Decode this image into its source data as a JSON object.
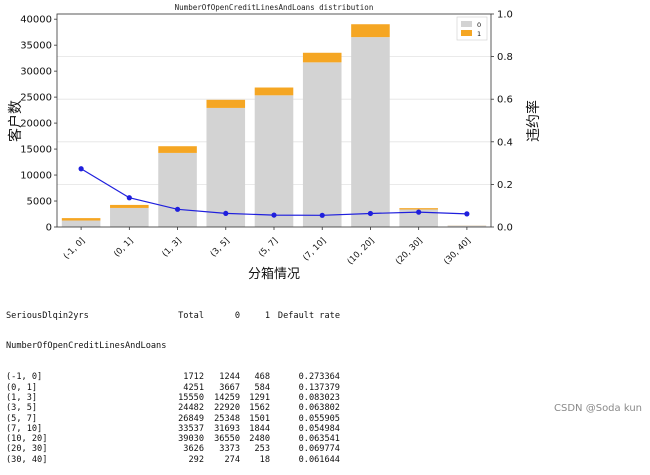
{
  "chart_data": {
    "type": "bar",
    "title": "NumberOfOpenCreditLinesAndLoans distribution",
    "xlabel": "分箱情况",
    "ylabel": "客户数",
    "y2label": "违约率",
    "categories": [
      "(-1, 0]",
      "(0, 1]",
      "(1, 3]",
      "(3, 5]",
      "(5, 7]",
      "(7, 10]",
      "(10, 20]",
      "(20, 30]",
      "(30, 40]"
    ],
    "series": [
      {
        "name": "0",
        "values": [
          1244,
          3667,
          14259,
          22920,
          25348,
          31693,
          36550,
          3373,
          274
        ],
        "color": "#d3d3d3"
      },
      {
        "name": "1",
        "values": [
          468,
          584,
          1291,
          1562,
          1501,
          1844,
          2480,
          253,
          18
        ],
        "color": "#f5a623"
      }
    ],
    "line_series": {
      "name": "Default rate",
      "values": [
        0.273364,
        0.137379,
        0.083023,
        0.063802,
        0.055905,
        0.054984,
        0.063541,
        0.069774,
        0.061644
      ],
      "color": "#1f1fdd"
    },
    "ylim": [
      0,
      41000
    ],
    "yticks": [
      0,
      5000,
      10000,
      15000,
      20000,
      25000,
      30000,
      35000,
      40000
    ],
    "y2lim": [
      0,
      1.0
    ],
    "y2ticks": [
      "0.0",
      "0.2",
      "0.4",
      "0.6",
      "0.8",
      "1.0"
    ],
    "legend_position": "top-right",
    "grid": "horizontal"
  },
  "table": {
    "header": {
      "label": "SeriousDlqin2yrs",
      "total": "Total",
      "zero": "0",
      "one": "1",
      "rate": "Default rate"
    },
    "index_name": "NumberOfOpenCreditLinesAndLoans",
    "rows": [
      {
        "label": "(-1, 0]",
        "total": "1712",
        "zero": "1244",
        "one": "468",
        "rate": "0.273364"
      },
      {
        "label": "(0, 1]",
        "total": "4251",
        "zero": "3667",
        "one": "584",
        "rate": "0.137379"
      },
      {
        "label": "(1, 3]",
        "total": "15550",
        "zero": "14259",
        "one": "1291",
        "rate": "0.083023"
      },
      {
        "label": "(3, 5]",
        "total": "24482",
        "zero": "22920",
        "one": "1562",
        "rate": "0.063802"
      },
      {
        "label": "(5, 7]",
        "total": "26849",
        "zero": "25348",
        "one": "1501",
        "rate": "0.055905"
      },
      {
        "label": "(7, 10]",
        "total": "33537",
        "zero": "31693",
        "one": "1844",
        "rate": "0.054984"
      },
      {
        "label": "(10, 20]",
        "total": "39030",
        "zero": "36550",
        "one": "2480",
        "rate": "0.063541"
      },
      {
        "label": "(20, 30]",
        "total": "3626",
        "zero": "3373",
        "one": "253",
        "rate": "0.069774"
      },
      {
        "label": "(30, 40]",
        "total": "292",
        "zero": "274",
        "one": "18",
        "rate": "0.061644"
      }
    ]
  },
  "watermark": "CSDN @Soda kun"
}
